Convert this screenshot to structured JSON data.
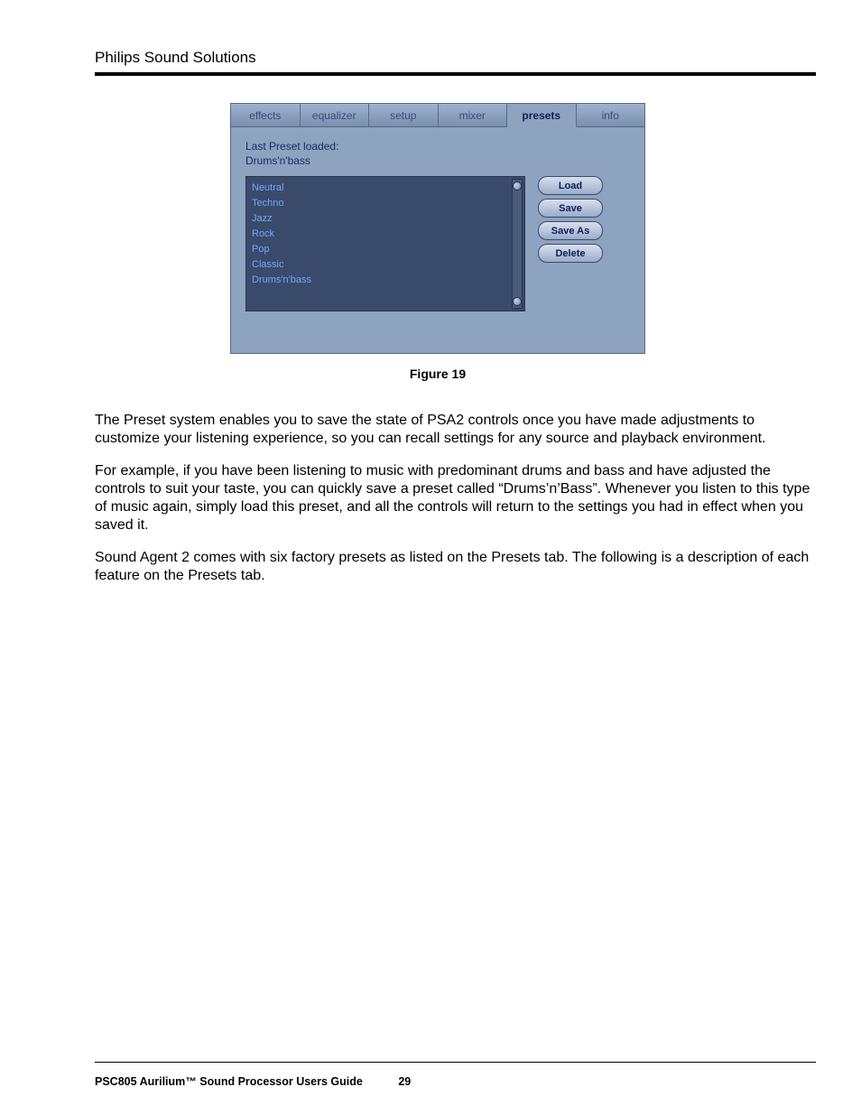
{
  "header": {
    "title": "Philips Sound Solutions"
  },
  "app": {
    "tabs": [
      {
        "label": "effects",
        "active": false
      },
      {
        "label": "equalizer",
        "active": false
      },
      {
        "label": "setup",
        "active": false
      },
      {
        "label": "mixer",
        "active": false
      },
      {
        "label": "presets",
        "active": true
      },
      {
        "label": "info",
        "active": false
      }
    ],
    "last_preset_label": "Last Preset loaded:",
    "last_preset_value": "Drums'n'bass",
    "presets": [
      "Neutral",
      "Techno",
      "Jazz",
      "Rock",
      "Pop",
      "Classic",
      "Drums'n'bass"
    ],
    "buttons": {
      "load": "Load",
      "save": "Save",
      "save_as": "Save As",
      "delete": "Delete"
    }
  },
  "figure_caption": "Figure 19",
  "paragraphs": [
    "The Preset system enables you to save the state of PSA2 controls once you have made adjustments to customize your listening experience, so you can recall settings for any source and playback environment.",
    "For example, if you have been listening to music with predominant drums and bass and have adjusted the controls to suit your taste, you can quickly save a preset called “Drums’n’Bass”. Whenever you listen to this type of music again, simply load this preset, and all the controls will return to the settings you had in effect when you saved it.",
    "Sound Agent 2 comes with six factory presets as listed on the Presets tab. The following is a description of each feature on the Presets tab."
  ],
  "footer": {
    "title": "PSC805 Aurilium™ Sound Processor Users Guide",
    "page": "29"
  },
  "colors": {
    "panel_bg": "#8ea3c0",
    "tab_bg": "#6e84a8",
    "list_bg": "#3a4a6a",
    "list_text": "#6fa8ff"
  }
}
